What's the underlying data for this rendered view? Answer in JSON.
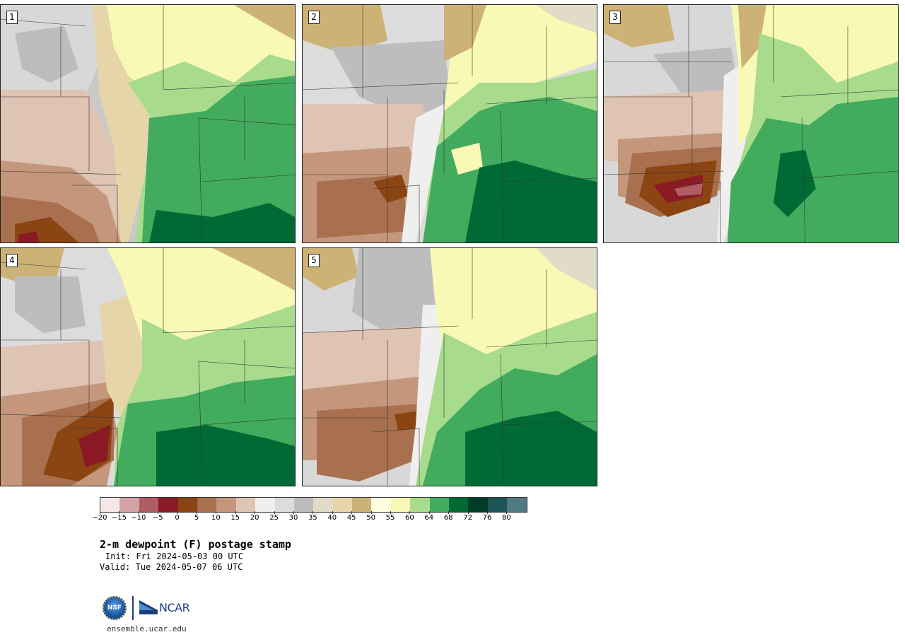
{
  "panels": [
    {
      "label": "1"
    },
    {
      "label": "2"
    },
    {
      "label": "3"
    },
    {
      "label": "4"
    },
    {
      "label": "5"
    }
  ],
  "colorbar": {
    "colors": [
      "#f5e6e8",
      "#d4a3a8",
      "#b05c63",
      "#8b1a24",
      "#8b4513",
      "#a9704f",
      "#c4977c",
      "#dfc3b3",
      "#efefef",
      "#dcdcdc",
      "#bdbdbd",
      "#e0dcc8",
      "#e6d5a8",
      "#cdb276",
      "#fffee0",
      "#f8f9b4",
      "#a8dc8c",
      "#42ab5d",
      "#006a35",
      "#003d24",
      "#1f5557",
      "#4e7a80"
    ],
    "tick_labels": [
      "−20",
      "−15",
      "−10",
      "−5",
      "0",
      "5",
      "10",
      "15",
      "20",
      "25",
      "30",
      "35",
      "40",
      "45",
      "50",
      "55",
      "60",
      "64",
      "68",
      "72",
      "76",
      "80"
    ]
  },
  "title": "2-m dewpoint (F) postage stamp",
  "init": "Init: Fri 2024-05-03 00 UTC",
  "valid": "Valid: Tue 2024-05-07 06 UTC",
  "logos": {
    "nsf": "NSF",
    "ncar": "NCAR"
  },
  "site": "ensemble.ucar.edu"
}
